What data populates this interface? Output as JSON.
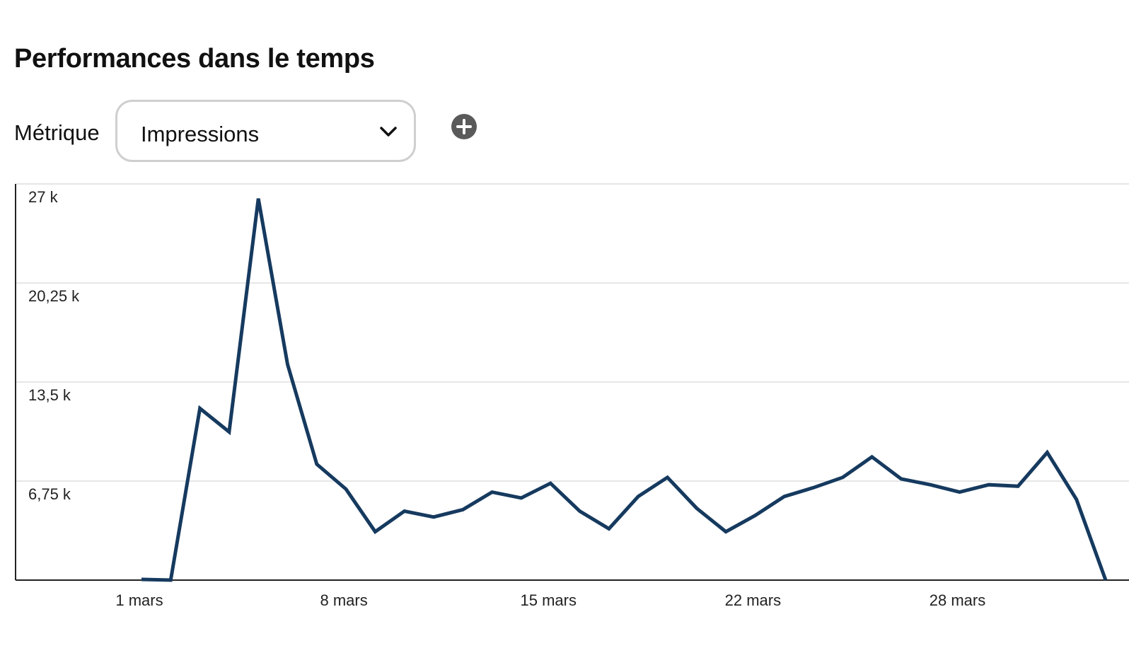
{
  "header": {
    "title": "Performances dans le temps"
  },
  "metric": {
    "label": "Métrique",
    "selected": "Impressions"
  },
  "icons": {
    "dropdown": "chevron-down-icon",
    "add": "plus-circle-icon"
  },
  "colors": {
    "line": "#163a5f",
    "grid": "#e6e6e6",
    "axis": "#222222",
    "add_button": "#5a5a5a"
  },
  "chart_data": {
    "type": "line",
    "title": "",
    "xlabel": "",
    "ylabel": "",
    "ylim": [
      0,
      27000
    ],
    "yticks": [
      6750,
      13500,
      20250,
      27000
    ],
    "ytick_labels": [
      "6,75 k",
      "13,5 k",
      "20,25 k",
      "27 k"
    ],
    "xtick_labels": [
      "1 mars",
      "8 mars",
      "15 mars",
      "22 mars",
      "28 mars"
    ],
    "xtick_positions": [
      0,
      7,
      14,
      21,
      28
    ],
    "grid": true,
    "series": [
      {
        "values": [
          50,
          0,
          11700,
          10100,
          26000,
          14700,
          7900,
          6200,
          3300,
          4700,
          4300,
          4800,
          6000,
          5600,
          6600,
          4700,
          3500,
          5700,
          7000,
          4900,
          3300,
          4400,
          5700,
          6300,
          7000,
          8400,
          6900,
          6500,
          6000,
          6500,
          6400,
          8700,
          5500,
          0
        ]
      }
    ]
  }
}
